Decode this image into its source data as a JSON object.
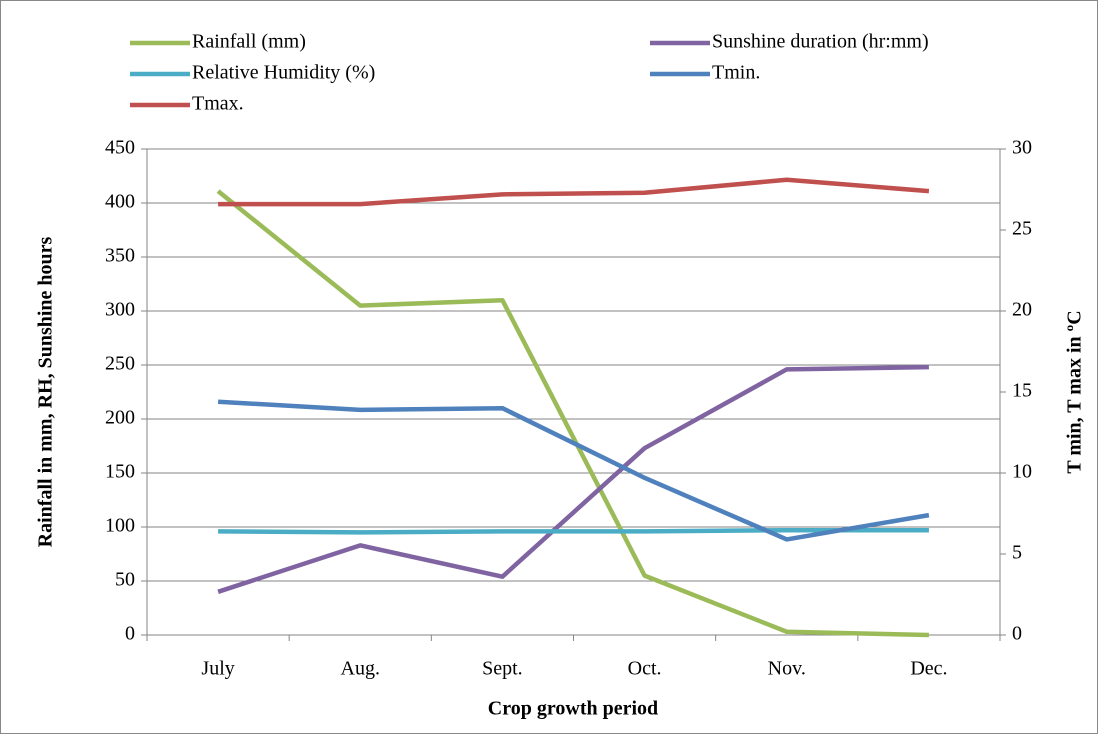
{
  "chart_data": {
    "type": "line",
    "x_label": "Crop growth period",
    "y_label": "Rainfall in mm, RH, Sunshine hours",
    "y2_label": "T min, T max in ºC",
    "categories": [
      "July",
      "Aug.",
      "Sept.",
      "Oct.",
      "Nov.",
      "Dec."
    ],
    "series": [
      {
        "name": "Rainfall (mm)",
        "color": "#9bbb59",
        "values": [
          411,
          305,
          310,
          55,
          3,
          0
        ]
      },
      {
        "name": "Sunshine duration (hr:mm)",
        "color": "#8064a2",
        "values": [
          40,
          83,
          54,
          173,
          246,
          248
        ]
      },
      {
        "name": "Relative Humidity  (%)",
        "color": "#4bacc6",
        "values": [
          96,
          95,
          96,
          96,
          97,
          97
        ]
      },
      {
        "name": "Tmin.",
        "color": "#4f81bd",
        "axis": "y2",
        "values": [
          14.4,
          13.9,
          14.0,
          9.7,
          5.9,
          7.4
        ]
      },
      {
        "name": "Tmax.",
        "color": "#c0504d",
        "axis": "y2",
        "values": [
          26.6,
          26.6,
          27.2,
          27.3,
          28.1,
          27.4
        ]
      }
    ],
    "ylim": [
      0,
      450
    ],
    "yticks": [
      0,
      50,
      100,
      150,
      200,
      250,
      300,
      350,
      400,
      450
    ],
    "y2lim": [
      0,
      30
    ],
    "y2ticks": [
      0,
      5,
      10,
      15,
      20,
      25,
      30
    ],
    "grid": true
  }
}
